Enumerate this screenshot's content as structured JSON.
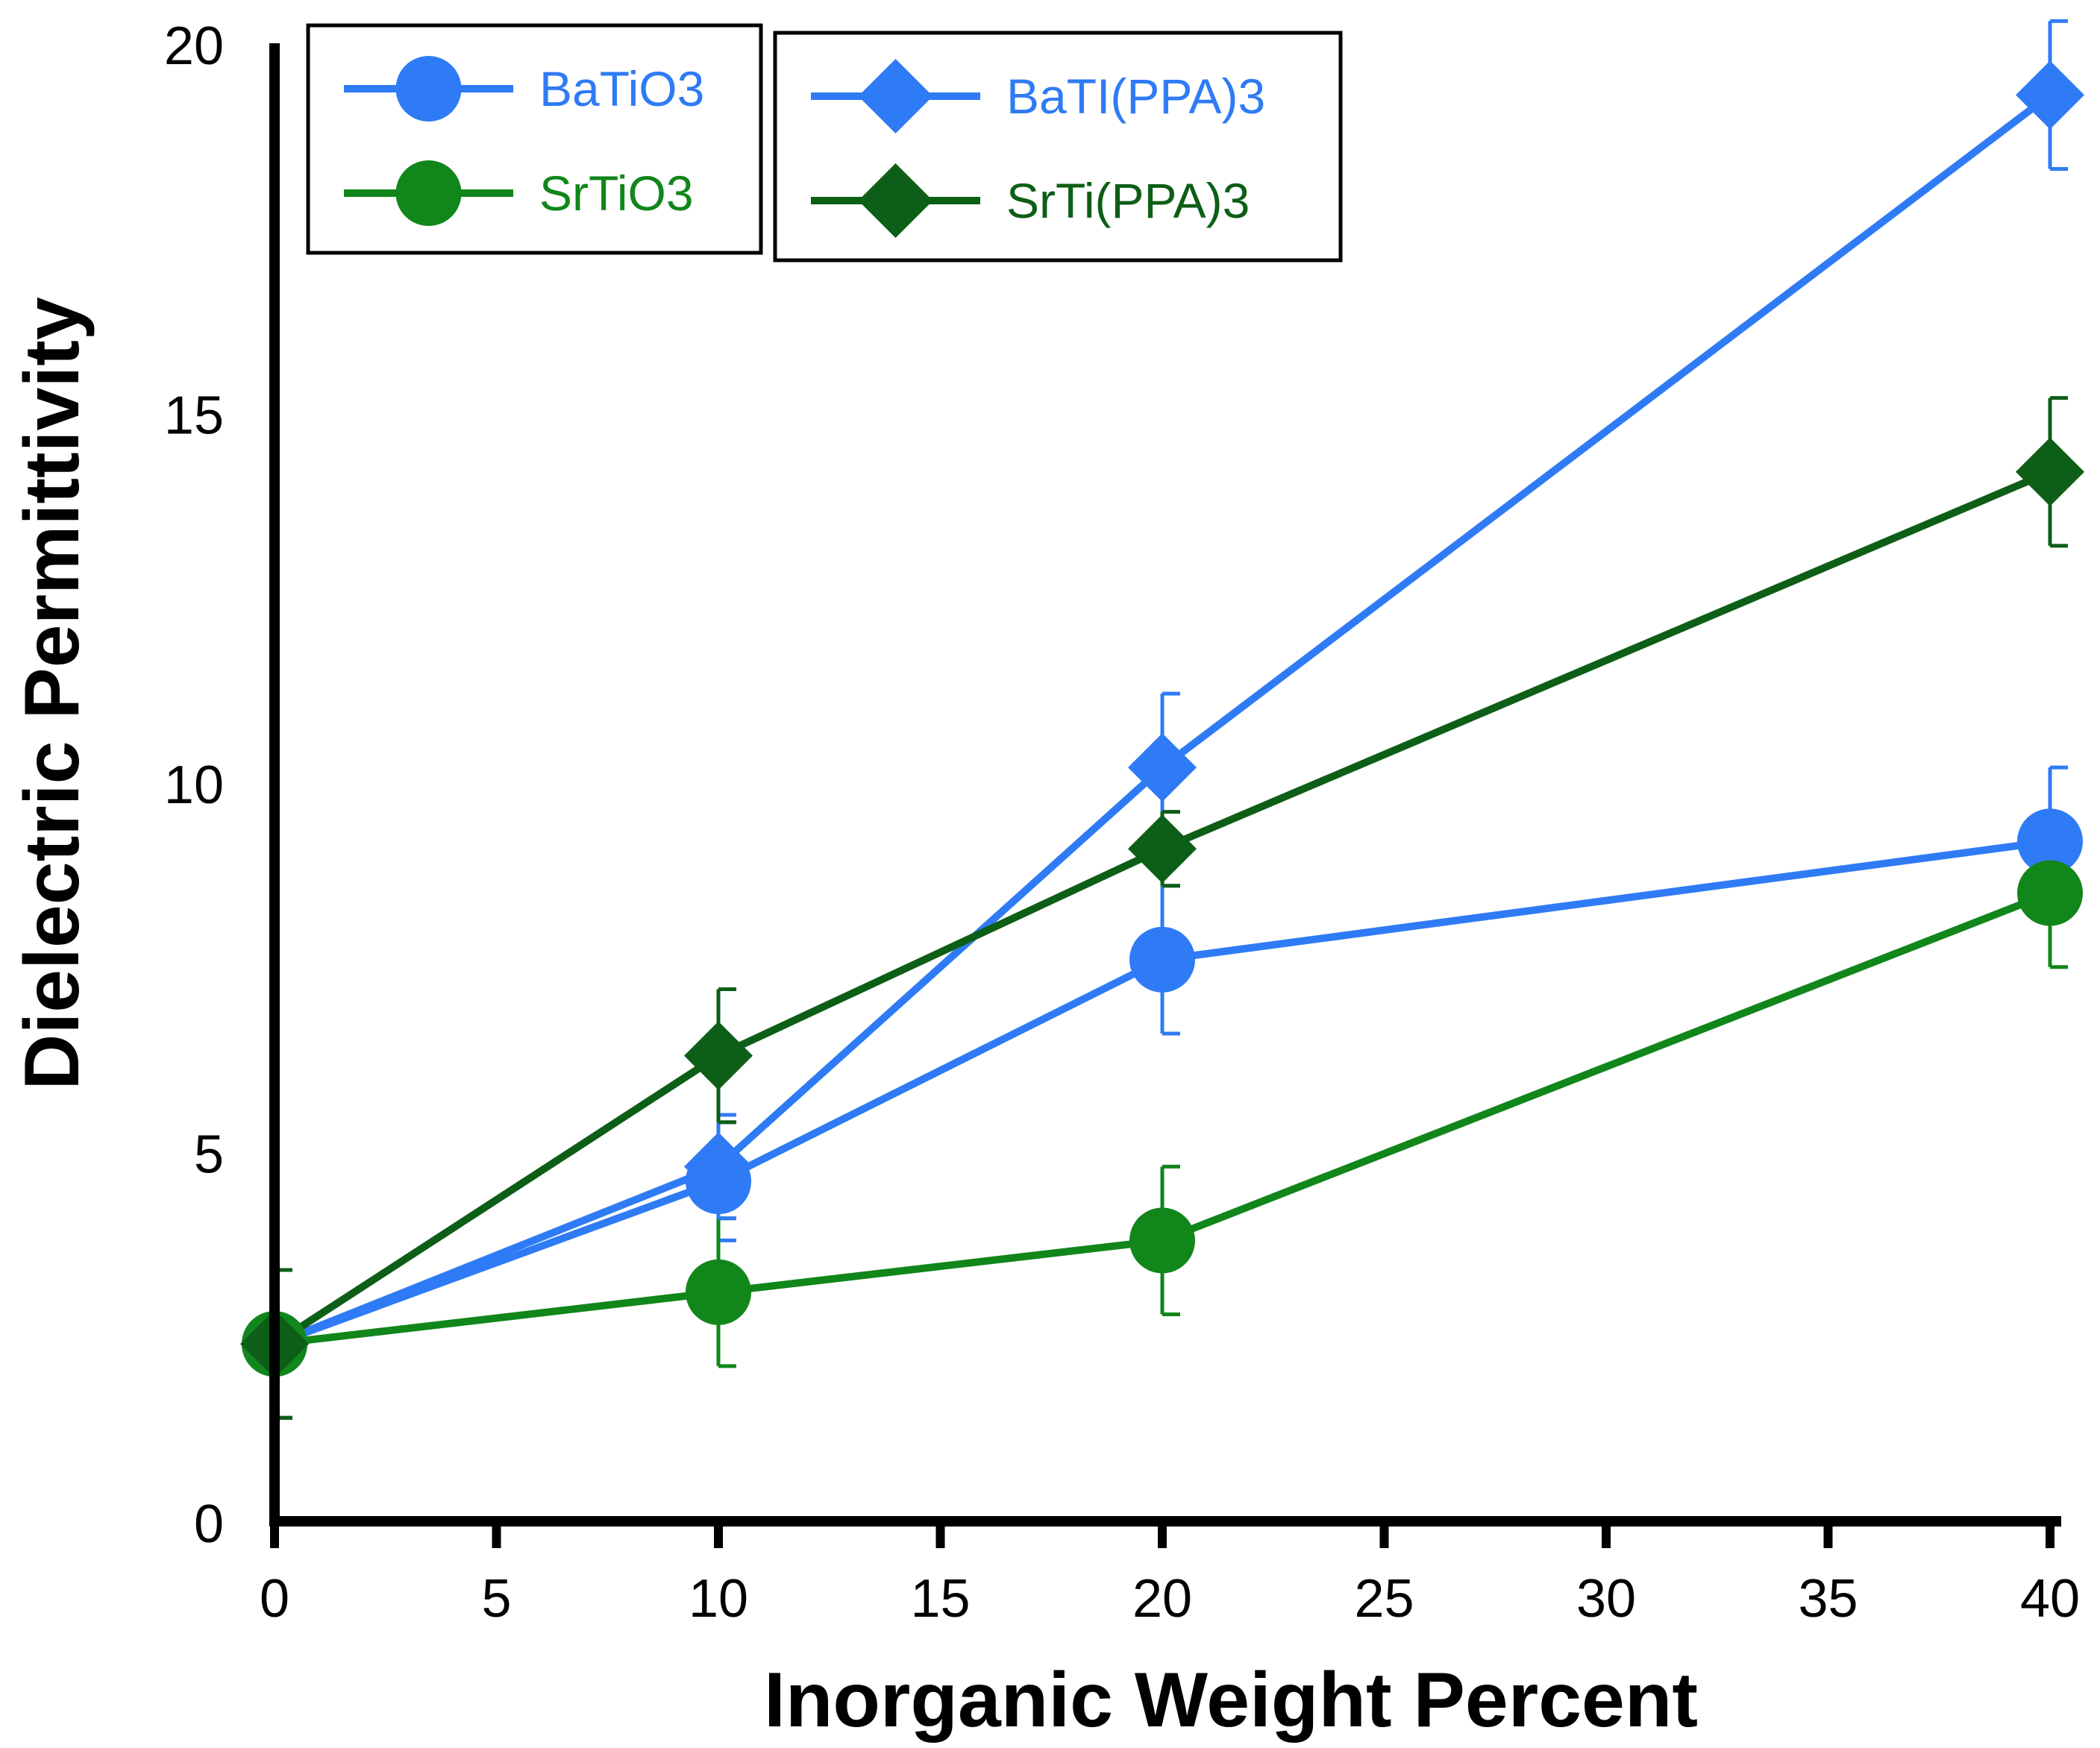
{
  "chart_data": {
    "type": "line",
    "title": "",
    "xlabel": "Inorganic Weight Percent",
    "ylabel": "Dielectric Permittivity",
    "xlim": [
      0,
      40
    ],
    "ylim": [
      0,
      20
    ],
    "x_ticks": [
      0,
      5,
      10,
      15,
      20,
      25,
      30,
      35,
      40
    ],
    "y_ticks": [
      0,
      5,
      10,
      15,
      20
    ],
    "x_tick_labels": [
      "0",
      "5",
      "10",
      "15",
      "20",
      "25",
      "30",
      "35",
      "40"
    ],
    "y_tick_labels": [
      "0",
      "5",
      "10",
      "15",
      "20"
    ],
    "grid": false,
    "legend_position": "top",
    "series": [
      {
        "name": "BaTiO3",
        "color": "#2F7BF5",
        "marker": "circle",
        "x": [
          0,
          10,
          20,
          40
        ],
        "y": [
          2.4,
          4.6,
          7.6,
          9.2
        ],
        "err": [
          1.0,
          0.8,
          1.0,
          1.0
        ]
      },
      {
        "name": "SrTiO3",
        "color": "#11861A",
        "marker": "circle",
        "x": [
          0,
          10,
          20,
          40
        ],
        "y": [
          2.4,
          3.1,
          3.8,
          8.5
        ],
        "err": [
          1.0,
          1.0,
          1.0,
          1.0
        ]
      },
      {
        "name": "BaTI(PPA)3",
        "color": "#2F7BF5",
        "marker": "diamond",
        "x": [
          0,
          10,
          20,
          40
        ],
        "y": [
          2.4,
          4.8,
          10.2,
          19.3
        ],
        "err": [
          1.0,
          0.7,
          1.0,
          1.0
        ]
      },
      {
        "name": "SrTi(PPA)3",
        "color": "#0D5E16",
        "marker": "diamond",
        "x": [
          0,
          10,
          20,
          40
        ],
        "y": [
          2.4,
          6.3,
          9.1,
          14.2
        ],
        "err": [
          1.0,
          0.9,
          0.5,
          1.0
        ]
      }
    ],
    "legend_groups": [
      [
        "BaTiO3",
        "SrTiO3"
      ],
      [
        "BaTI(PPA)3",
        "SrTi(PPA)3"
      ]
    ]
  }
}
